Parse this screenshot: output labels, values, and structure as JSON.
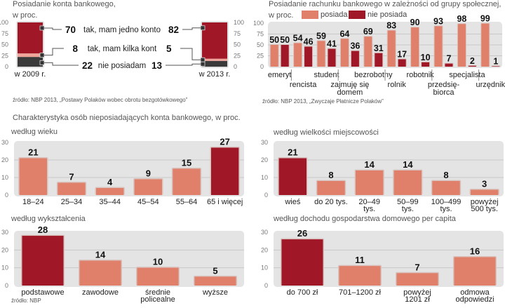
{
  "chart_data": [
    {
      "id": "ownership",
      "type": "bar",
      "subtype": "stacked-comparison",
      "title": "Posiadanie konta bankowego,",
      "subtitle": "w proc.",
      "categories": [
        "w 2009 r.",
        "w 2013 r."
      ],
      "ylim": [
        0,
        100
      ],
      "yticks": [
        "100",
        "75",
        "50",
        "25",
        "0"
      ],
      "series": [
        {
          "name": "nie posiadam",
          "values": [
            22,
            13
          ],
          "color": "#3a3a3a"
        },
        {
          "name": "tak, mam kilka kont",
          "values": [
            8,
            5
          ],
          "color": "#f0a59a"
        },
        {
          "name": "tak, mam jedno konto",
          "values": [
            70,
            82
          ],
          "color": "#a01828"
        }
      ],
      "source": "źródło: NBP 2013, „Postawy Polaków wobec obrotu bezgotówkowego”"
    },
    {
      "id": "social-group",
      "type": "bar",
      "title": "Posiadanie rachunku bankowego w zależności od grupy społecznej,",
      "subtitle": "w proc.",
      "legend": [
        "posiada",
        "nie posiada"
      ],
      "legend_position": "top",
      "categories": [
        "emeryt",
        "rencista",
        "student",
        "zajmuję się domem",
        "bezrobotny",
        "rolnik",
        "robotnik",
        "przedsiębiorca",
        "specjalista",
        "urzędnik"
      ],
      "category_labels": [
        [
          "emeryt"
        ],
        [
          "rencista"
        ],
        [
          "student"
        ],
        [
          "zajmuję się",
          "domem"
        ],
        [
          "bezrobotny"
        ],
        [
          "rolnik"
        ],
        [
          "robotnik"
        ],
        [
          "przedsię-",
          "biorca"
        ],
        [
          "specjalista"
        ],
        [
          "urzędnik"
        ]
      ],
      "ylim": [
        0,
        100
      ],
      "yticks": [
        "100",
        "75",
        "50",
        "25",
        "0"
      ],
      "series": [
        {
          "name": "posiada",
          "values": [
            50,
            54,
            59,
            64,
            69,
            83,
            90,
            93,
            98,
            99
          ],
          "color": "#e0806a"
        },
        {
          "name": "nie posiada",
          "values": [
            50,
            46,
            41,
            36,
            31,
            17,
            10,
            7,
            2,
            1
          ],
          "color": "#a01828"
        }
      ],
      "source": "źródło: NBP 2013, „Zwyczaje Płatnicze Polaków”"
    },
    {
      "id": "age",
      "type": "bar",
      "title": "według wieku",
      "categories": [
        "18–24",
        "25–34",
        "35–44",
        "45–54",
        "55–64",
        "65 i więcej"
      ],
      "category_labels": [
        [
          "18–24"
        ],
        [
          "25–34"
        ],
        [
          "35–44"
        ],
        [
          "45–54"
        ],
        [
          "55–64"
        ],
        [
          "65 i więcej"
        ]
      ],
      "values": [
        21,
        7,
        4,
        9,
        15,
        27
      ],
      "highlight": [
        5
      ],
      "ylim": [
        0,
        30
      ],
      "yticks": [
        "30",
        "20",
        "10",
        "0"
      ]
    },
    {
      "id": "town-size",
      "type": "bar",
      "title": "według wielkości miejscowości",
      "categories": [
        "wieś",
        "do 20 tys.",
        "20–49 tys.",
        "50–99 tys.",
        "100–499 tys.",
        "powyżej 500 tys."
      ],
      "category_labels": [
        [
          "wieś"
        ],
        [
          "do 20 tys."
        ],
        [
          "20–49",
          "tys."
        ],
        [
          "50–99",
          "tys."
        ],
        [
          "100–499",
          "tys."
        ],
        [
          "powyżej",
          "500 tys."
        ]
      ],
      "values": [
        21,
        8,
        14,
        14,
        8,
        3
      ],
      "highlight": [
        0
      ],
      "ylim": [
        0,
        30
      ],
      "yticks": [
        "30",
        "20",
        "10",
        "0"
      ]
    },
    {
      "id": "education",
      "type": "bar",
      "title": "według wykształcenia",
      "categories": [
        "podstawowe",
        "zawodowe",
        "średnie policealne",
        "wyższe"
      ],
      "category_labels": [
        [
          "podstawowe"
        ],
        [
          "zawodowe"
        ],
        [
          "średnie",
          "policealne"
        ],
        [
          "wyższe"
        ]
      ],
      "values": [
        28,
        14,
        10,
        5
      ],
      "highlight": [
        0
      ],
      "ylim": [
        0,
        30
      ],
      "yticks": [
        "30",
        "20",
        "10",
        "0"
      ],
      "source": "źródło: NBP"
    },
    {
      "id": "income",
      "type": "bar",
      "title": "według dochodu gospodarstwa domowego per capita",
      "categories": [
        "do 700 zł",
        "701–1200 zł",
        "powyżej 1201 zł",
        "odmowa odpowiedzi"
      ],
      "category_labels": [
        [
          "do 700 zł"
        ],
        [
          "701–1200 zł"
        ],
        [
          "powyżej",
          "1201 zł"
        ],
        [
          "odmowa",
          "odpowiedzi"
        ]
      ],
      "values": [
        26,
        11,
        7,
        16
      ],
      "highlight": [
        0
      ],
      "ylim": [
        0,
        30
      ],
      "yticks": [
        "30",
        "20",
        "10",
        "0"
      ]
    }
  ],
  "section_title": "Charakterystyka osób nieposiadających konta bankowego, w proc.",
  "colors": {
    "dark_red": "#a01828",
    "salmon": "#e0806a",
    "light_pink": "#f0a59a",
    "dark_gray": "#3a3a3a",
    "plot_bg": "#e4e4e4"
  }
}
